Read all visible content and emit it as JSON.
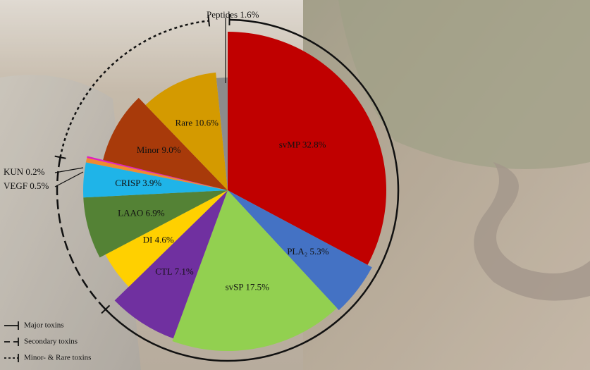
{
  "chart_data": {
    "type": "pie",
    "categories": [
      "svMP",
      "PLA₂",
      "svSP",
      "CTL",
      "DI",
      "LAAO",
      "CRISP",
      "VEGF",
      "KUN",
      "Minor",
      "Rare",
      "Peptides"
    ],
    "values": [
      32.8,
      5.3,
      17.5,
      7.1,
      4.6,
      6.9,
      3.9,
      0.5,
      0.2,
      9.0,
      10.6,
      1.6
    ],
    "value_labels": [
      "32.8%",
      "5.3%",
      "17.5%",
      "7.1%",
      "4.6%",
      "6.9%",
      "3.9%",
      "0.5%",
      "0.2%",
      "9.0%",
      "10.6%",
      "1.6%"
    ],
    "colors": [
      "#c00000",
      "#4472c4",
      "#92d050",
      "#7030a0",
      "#ffd000",
      "#548235",
      "#1fb4e8",
      "#f08a30",
      "#e020c0",
      "#a83a0a",
      "#d49a00",
      "#8c8c8c"
    ],
    "legend": [
      "Major toxins",
      "Secondary toxins",
      "Minor- & Rare toxins"
    ]
  }
}
